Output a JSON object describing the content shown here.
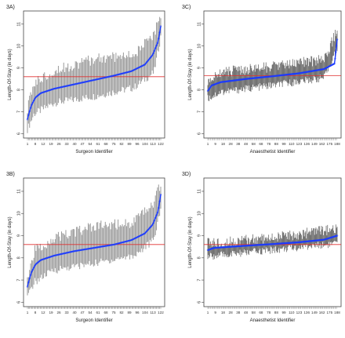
{
  "panels": [
    {
      "label": "3A)",
      "chart_data": {
        "type": "scatter",
        "xlabel": "Surgeon Identifier",
        "ylabel": "Length-Of-Stay (in days)",
        "ylim": [
          5.8,
          11.6
        ],
        "y_ticks": [
          6,
          7,
          8,
          9,
          10,
          11
        ],
        "x_tick_labels": [
          "1",
          "8",
          "12",
          "19",
          "26",
          "33",
          "40",
          "47",
          "54",
          "61",
          "68",
          "75",
          "82",
          "89",
          "96",
          "104",
          "113",
          "122"
        ],
        "n_units": 126,
        "reference_line": 8.6,
        "series": [
          {
            "role": "point-estimate",
            "color": "#1a3aff",
            "curve": [
              [
                0,
                6.65
              ],
              [
                0.01,
                6.9
              ],
              [
                0.03,
                7.3
              ],
              [
                0.06,
                7.65
              ],
              [
                0.1,
                7.85
              ],
              [
                0.2,
                8.05
              ],
              [
                0.35,
                8.25
              ],
              [
                0.5,
                8.45
              ],
              [
                0.65,
                8.65
              ],
              [
                0.78,
                8.85
              ],
              [
                0.88,
                9.15
              ],
              [
                0.94,
                9.6
              ],
              [
                0.98,
                10.2
              ],
              [
                1,
                10.9
              ]
            ]
          },
          {
            "role": "interval",
            "color": "#9a9a9a",
            "lower": [
              [
                0,
                6.2
              ],
              [
                0.05,
                6.9
              ],
              [
                0.2,
                7.4
              ],
              [
                0.5,
                7.7
              ],
              [
                0.8,
                8.1
              ],
              [
                0.95,
                8.8
              ],
              [
                1,
                10.4
              ]
            ],
            "upper": [
              [
                0,
                7.1
              ],
              [
                0.05,
                8.3
              ],
              [
                0.2,
                8.9
              ],
              [
                0.5,
                9.4
              ],
              [
                0.8,
                9.6
              ],
              [
                0.95,
                10.5
              ],
              [
                1,
                11.5
              ]
            ]
          }
        ]
      }
    },
    {
      "label": "3C)",
      "chart_data": {
        "type": "scatter",
        "xlabel": "Anaesthetist Identifier",
        "ylabel": "Length-Of-Stay (in days)",
        "ylim": [
          5.8,
          11.6
        ],
        "y_ticks": [
          6,
          7,
          8,
          9,
          10,
          11
        ],
        "x_tick_labels": [
          "1",
          "9",
          "18",
          "28",
          "38",
          "48",
          "58",
          "68",
          "78",
          "88",
          "99",
          "110",
          "123",
          "136",
          "149",
          "162",
          "175",
          "188"
        ],
        "n_units": 190,
        "reference_line": 8.65,
        "series": [
          {
            "role": "point-estimate",
            "color": "#1a3aff",
            "curve": [
              [
                0,
                7.95
              ],
              [
                0.03,
                8.2
              ],
              [
                0.1,
                8.35
              ],
              [
                0.3,
                8.5
              ],
              [
                0.5,
                8.62
              ],
              [
                0.7,
                8.75
              ],
              [
                0.9,
                8.95
              ],
              [
                0.98,
                9.2
              ],
              [
                1,
                10.3
              ]
            ]
          },
          {
            "role": "interval",
            "color": "#555555",
            "lower": [
              [
                0,
                7.6
              ],
              [
                0.1,
                7.9
              ],
              [
                0.5,
                8.2
              ],
              [
                0.9,
                8.55
              ],
              [
                1,
                9.9
              ]
            ],
            "upper": [
              [
                0,
                8.3
              ],
              [
                0.1,
                8.8
              ],
              [
                0.5,
                9.05
              ],
              [
                0.9,
                9.4
              ],
              [
                1,
                10.7
              ]
            ]
          }
        ]
      }
    },
    {
      "label": "3B)",
      "chart_data": {
        "type": "scatter",
        "xlabel": "Surgeon Identifier",
        "ylabel": "Length-Of-Stay (in days)",
        "ylim": [
          5.8,
          11.6
        ],
        "y_ticks": [
          6,
          7,
          8,
          9,
          10,
          11
        ],
        "x_tick_labels": [
          "1",
          "8",
          "12",
          "19",
          "26",
          "33",
          "40",
          "47",
          "54",
          "61",
          "68",
          "75",
          "82",
          "89",
          "96",
          "104",
          "113",
          "122"
        ],
        "n_units": 126,
        "reference_line": 8.6,
        "series": [
          {
            "role": "point-estimate",
            "color": "#1a3aff",
            "curve": [
              [
                0,
                6.7
              ],
              [
                0.01,
                6.95
              ],
              [
                0.03,
                7.35
              ],
              [
                0.06,
                7.7
              ],
              [
                0.1,
                7.9
              ],
              [
                0.2,
                8.1
              ],
              [
                0.35,
                8.3
              ],
              [
                0.5,
                8.45
              ],
              [
                0.65,
                8.6
              ],
              [
                0.78,
                8.8
              ],
              [
                0.88,
                9.1
              ],
              [
                0.94,
                9.5
              ],
              [
                0.98,
                10.1
              ],
              [
                1,
                10.85
              ]
            ]
          },
          {
            "role": "interval",
            "color": "#9a9a9a",
            "lower": [
              [
                0,
                6.2
              ],
              [
                0.05,
                6.9
              ],
              [
                0.2,
                7.45
              ],
              [
                0.5,
                7.75
              ],
              [
                0.8,
                8.1
              ],
              [
                0.95,
                8.8
              ],
              [
                1,
                10.3
              ]
            ],
            "upper": [
              [
                0,
                7.1
              ],
              [
                0.05,
                8.3
              ],
              [
                0.2,
                8.9
              ],
              [
                0.5,
                9.4
              ],
              [
                0.8,
                9.6
              ],
              [
                0.95,
                10.5
              ],
              [
                1,
                11.4
              ]
            ]
          }
        ]
      }
    },
    {
      "label": "3D)",
      "chart_data": {
        "type": "scatter",
        "xlabel": "Anaesthetist Identifier",
        "ylabel": "Length-Of-Stay (in days)",
        "ylim": [
          5.8,
          11.6
        ],
        "y_ticks": [
          6,
          7,
          8,
          9,
          10,
          11
        ],
        "x_tick_labels": [
          "1",
          "9",
          "18",
          "28",
          "38",
          "48",
          "58",
          "68",
          "78",
          "88",
          "99",
          "110",
          "123",
          "136",
          "149",
          "162",
          "175",
          "188"
        ],
        "n_units": 190,
        "reference_line": 8.6,
        "series": [
          {
            "role": "point-estimate",
            "color": "#1a3aff",
            "curve": [
              [
                0,
                8.35
              ],
              [
                0.05,
                8.45
              ],
              [
                0.3,
                8.55
              ],
              [
                0.5,
                8.62
              ],
              [
                0.7,
                8.7
              ],
              [
                0.9,
                8.82
              ],
              [
                1,
                9.0
              ]
            ]
          },
          {
            "role": "interval",
            "color": "#555555",
            "lower": [
              [
                0,
                8.05
              ],
              [
                0.5,
                8.35
              ],
              [
                1,
                8.65
              ]
            ],
            "upper": [
              [
                0,
                8.65
              ],
              [
                0.5,
                8.9
              ],
              [
                1,
                9.3
              ]
            ]
          }
        ]
      }
    }
  ]
}
